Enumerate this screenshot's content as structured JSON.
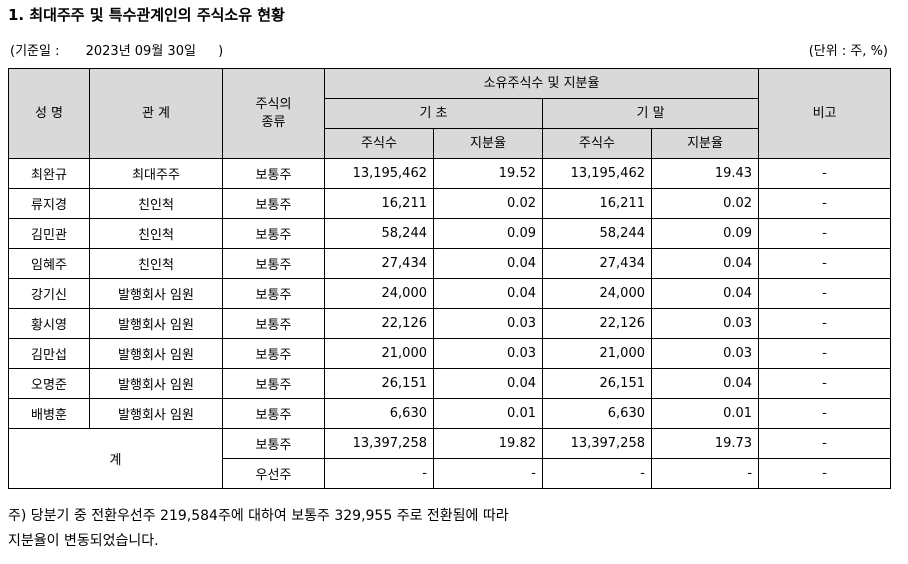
{
  "title": "1. 최대주주 및 특수관계인의 주식소유 현황",
  "basis": {
    "prefix": "(기준일 :",
    "date": "2023년 09월 30일",
    "suffix": ")"
  },
  "unit": "(단위 : 주, %)",
  "table": {
    "headers": {
      "name": "성 명",
      "relation": "관 계",
      "stock_type_line1": "주식의",
      "stock_type_line2": "종류",
      "ownership": "소유주식수 및 지분율",
      "begin": "기 초",
      "end": "기 말",
      "shares_begin": "주식수",
      "ratio_begin": "지분율",
      "shares_end": "주식수",
      "ratio_end": "지분율",
      "remark": "비고"
    },
    "rows": [
      {
        "name": "최완규",
        "relation": "최대주주",
        "type": "보통주",
        "shares_begin": "13,195,462",
        "ratio_begin": "19.52",
        "shares_end": "13,195,462",
        "ratio_end": "19.43",
        "remark": "-"
      },
      {
        "name": "류지경",
        "relation": "친인척",
        "type": "보통주",
        "shares_begin": "16,211",
        "ratio_begin": "0.02",
        "shares_end": "16,211",
        "ratio_end": "0.02",
        "remark": "-"
      },
      {
        "name": "김민관",
        "relation": "친인척",
        "type": "보통주",
        "shares_begin": "58,244",
        "ratio_begin": "0.09",
        "shares_end": "58,244",
        "ratio_end": "0.09",
        "remark": "-"
      },
      {
        "name": "임혜주",
        "relation": "친인척",
        "type": "보통주",
        "shares_begin": "27,434",
        "ratio_begin": "0.04",
        "shares_end": "27,434",
        "ratio_end": "0.04",
        "remark": "-"
      },
      {
        "name": "강기신",
        "relation": "발행회사 임원",
        "type": "보통주",
        "shares_begin": "24,000",
        "ratio_begin": "0.04",
        "shares_end": "24,000",
        "ratio_end": "0.04",
        "remark": "-"
      },
      {
        "name": "황시영",
        "relation": "발행회사 임원",
        "type": "보통주",
        "shares_begin": "22,126",
        "ratio_begin": "0.03",
        "shares_end": "22,126",
        "ratio_end": "0.03",
        "remark": "-"
      },
      {
        "name": "김만섭",
        "relation": "발행회사 임원",
        "type": "보통주",
        "shares_begin": "21,000",
        "ratio_begin": "0.03",
        "shares_end": "21,000",
        "ratio_end": "0.03",
        "remark": "-"
      },
      {
        "name": "오명준",
        "relation": "발행회사 임원",
        "type": "보통주",
        "shares_begin": "26,151",
        "ratio_begin": "0.04",
        "shares_end": "26,151",
        "ratio_end": "0.04",
        "remark": "-"
      },
      {
        "name": "배병훈",
        "relation": "발행회사 임원",
        "type": "보통주",
        "shares_begin": "6,630",
        "ratio_begin": "0.01",
        "shares_end": "6,630",
        "ratio_end": "0.01",
        "remark": "-"
      }
    ],
    "total": {
      "label": "계",
      "rows": [
        {
          "type": "보통주",
          "shares_begin": "13,397,258",
          "ratio_begin": "19.82",
          "shares_end": "13,397,258",
          "ratio_end": "19.73",
          "remark": "-"
        },
        {
          "type": "우선주",
          "shares_begin": "-",
          "ratio_begin": "-",
          "shares_end": "-",
          "ratio_end": "-",
          "remark": "-"
        }
      ]
    }
  },
  "note": {
    "line1": "주) 당분기 중 전환우선주 219,584주에 대하여 보통주 329,955 주로 전환됨에 따라",
    "line2": "지분율이 변동되었습니다."
  }
}
